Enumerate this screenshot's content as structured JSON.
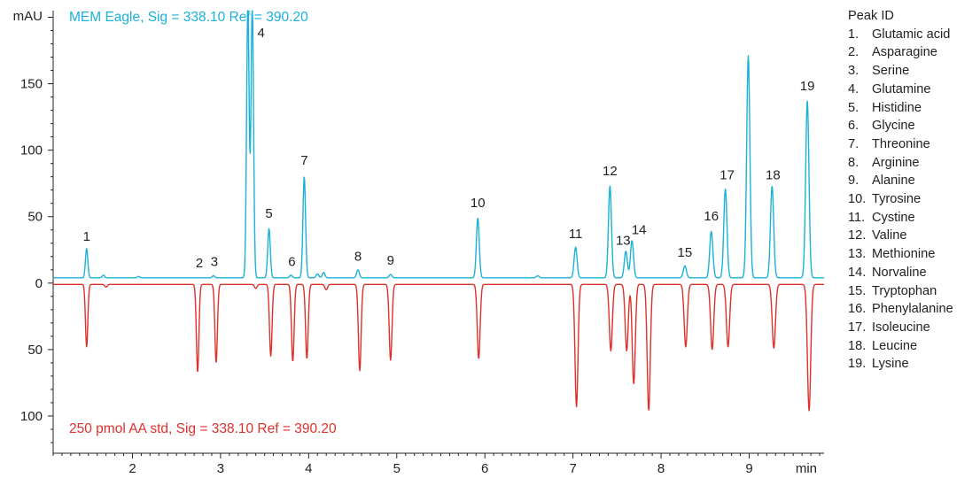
{
  "chart_data": {
    "type": "line",
    "xlabel": "min",
    "ylabel": "mAU",
    "xlim": [
      1.1,
      9.85
    ],
    "ylim": [
      -128,
      205
    ],
    "x_ticks": [
      2,
      3,
      4,
      5,
      6,
      7,
      8,
      9
    ],
    "y_ticks": [
      {
        "value": 150,
        "label": "150"
      },
      {
        "value": 100,
        "label": "100"
      },
      {
        "value": 50,
        "label": "50"
      },
      {
        "value": 0,
        "label": "0"
      },
      {
        "value": -50,
        "label": "50"
      },
      {
        "value": -100,
        "label": "100"
      }
    ],
    "grid": false,
    "series": [
      {
        "name": "MEM Eagle, Sig = 338.10 Ref = 390.20",
        "color": "#1ab2d8",
        "baseline": 4,
        "label_placement": "top-left",
        "peaks": [
          {
            "x": 1.48,
            "h": 22
          },
          {
            "x": 1.67,
            "h": 2
          },
          {
            "x": 2.07,
            "h": 1
          },
          {
            "x": 2.92,
            "h": 1.5
          },
          {
            "x": 3.31,
            "h": 205
          },
          {
            "x": 3.36,
            "h": 205
          },
          {
            "x": 3.55,
            "h": 37
          },
          {
            "x": 3.8,
            "h": 2
          },
          {
            "x": 3.95,
            "h": 76
          },
          {
            "x": 4.1,
            "h": 3
          },
          {
            "x": 4.17,
            "h": 4
          },
          {
            "x": 4.56,
            "h": 6
          },
          {
            "x": 4.93,
            "h": 2.5
          },
          {
            "x": 5.92,
            "h": 45
          },
          {
            "x": 6.6,
            "h": 1.5
          },
          {
            "x": 7.03,
            "h": 23
          },
          {
            "x": 7.42,
            "h": 69
          },
          {
            "x": 7.6,
            "h": 20
          },
          {
            "x": 7.67,
            "h": 28
          },
          {
            "x": 8.27,
            "h": 9
          },
          {
            "x": 8.57,
            "h": 35
          },
          {
            "x": 8.73,
            "h": 67
          },
          {
            "x": 8.99,
            "h": 167
          },
          {
            "x": 9.26,
            "h": 69
          },
          {
            "x": 9.66,
            "h": 133
          }
        ]
      },
      {
        "name": "250 pmol AA std, Sig = 338.10 Ref = 390.20",
        "color": "#e0302c",
        "baseline": -1,
        "label_placement": "bottom-left",
        "peaks": [
          {
            "x": 1.48,
            "h": -47
          },
          {
            "x": 1.7,
            "h": -2
          },
          {
            "x": 2.74,
            "h": -66
          },
          {
            "x": 2.95,
            "h": -59
          },
          {
            "x": 3.4,
            "h": -3
          },
          {
            "x": 3.57,
            "h": -54
          },
          {
            "x": 3.82,
            "h": -58
          },
          {
            "x": 3.98,
            "h": -56
          },
          {
            "x": 4.2,
            "h": -4
          },
          {
            "x": 4.58,
            "h": -65
          },
          {
            "x": 4.93,
            "h": -57
          },
          {
            "x": 5.93,
            "h": -56
          },
          {
            "x": 7.04,
            "h": -92
          },
          {
            "x": 7.43,
            "h": -50
          },
          {
            "x": 7.61,
            "h": -50
          },
          {
            "x": 7.69,
            "h": -75
          },
          {
            "x": 7.86,
            "h": -95
          },
          {
            "x": 8.28,
            "h": -47
          },
          {
            "x": 8.58,
            "h": -49
          },
          {
            "x": 8.76,
            "h": -47
          },
          {
            "x": 9.28,
            "h": -48
          },
          {
            "x": 9.68,
            "h": -95
          }
        ]
      }
    ],
    "annotations": [
      {
        "text": "1",
        "x": 1.48,
        "y": 32
      },
      {
        "text": "2",
        "x": 2.76,
        "y": 12
      },
      {
        "text": "3",
        "x": 2.93,
        "y": 13
      },
      {
        "text": "4",
        "x": 3.46,
        "y": 185
      },
      {
        "text": "5",
        "x": 3.55,
        "y": 49
      },
      {
        "text": "6",
        "x": 3.81,
        "y": 13
      },
      {
        "text": "7",
        "x": 3.95,
        "y": 89
      },
      {
        "text": "8",
        "x": 4.56,
        "y": 17
      },
      {
        "text": "9",
        "x": 4.93,
        "y": 14
      },
      {
        "text": "10",
        "x": 5.92,
        "y": 57
      },
      {
        "text": "11",
        "x": 7.03,
        "y": 34
      },
      {
        "text": "12",
        "x": 7.42,
        "y": 81
      },
      {
        "text": "13",
        "x": 7.57,
        "y": 29
      },
      {
        "text": "14",
        "x": 7.75,
        "y": 37
      },
      {
        "text": "15",
        "x": 8.27,
        "y": 20
      },
      {
        "text": "16",
        "x": 8.57,
        "y": 47
      },
      {
        "text": "17",
        "x": 8.75,
        "y": 78
      },
      {
        "text": "18",
        "x": 9.27,
        "y": 78
      },
      {
        "text": "19",
        "x": 9.66,
        "y": 145
      }
    ]
  },
  "legend": {
    "title": "Peak ID",
    "items": [
      {
        "num": "1.",
        "name": "Glutamic acid"
      },
      {
        "num": "2.",
        "name": "Asparagine"
      },
      {
        "num": "3.",
        "name": "Serine"
      },
      {
        "num": "4.",
        "name": "Glutamine"
      },
      {
        "num": "5.",
        "name": "Histidine"
      },
      {
        "num": "6.",
        "name": "Glycine"
      },
      {
        "num": "7.",
        "name": "Threonine"
      },
      {
        "num": "8.",
        "name": "Arginine"
      },
      {
        "num": "9.",
        "name": "Alanine"
      },
      {
        "num": "10.",
        "name": "Tyrosine"
      },
      {
        "num": "11.",
        "name": "Cystine"
      },
      {
        "num": "12.",
        "name": "Valine"
      },
      {
        "num": "13.",
        "name": "Methionine"
      },
      {
        "num": "14.",
        "name": "Norvaline"
      },
      {
        "num": "15.",
        "name": "Tryptophan"
      },
      {
        "num": "16.",
        "name": "Phenylalanine"
      },
      {
        "num": "17.",
        "name": "Isoleucine"
      },
      {
        "num": "18.",
        "name": "Leucine"
      },
      {
        "num": "19.",
        "name": "Lysine"
      }
    ]
  }
}
